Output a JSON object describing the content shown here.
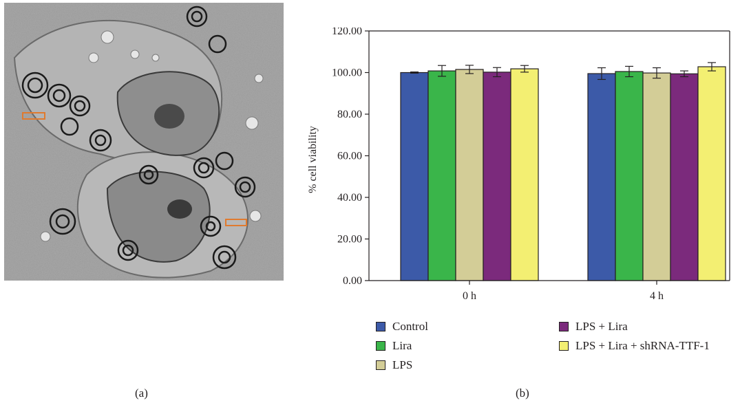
{
  "panels": {
    "left_label": "(a)",
    "right_label": "(b)"
  },
  "micrograph": {
    "description_icon": "tem-micrograph-image",
    "highlight_color": "#e07a2e"
  },
  "chart_data": {
    "type": "bar",
    "title": "",
    "xlabel": "",
    "ylabel": "% cell viability",
    "ylim": [
      0,
      120
    ],
    "yticks": [
      "0.00",
      "20.00",
      "40.00",
      "60.00",
      "80.00",
      "100.00",
      "120.00"
    ],
    "categories": [
      "0 h",
      "4 h"
    ],
    "series": [
      {
        "name": "Control",
        "color": "#3c5aa8",
        "values": [
          100.0,
          99.5
        ],
        "errors": [
          0.3,
          2.8
        ]
      },
      {
        "name": "Lira",
        "color": "#3ab54a",
        "values": [
          100.8,
          100.5
        ],
        "errors": [
          2.6,
          2.5
        ]
      },
      {
        "name": "LPS",
        "color": "#d3cd97",
        "values": [
          101.5,
          99.8
        ],
        "errors": [
          2.0,
          2.5
        ]
      },
      {
        "name": "LPS + Lira",
        "color": "#7b2a7c",
        "values": [
          100.2,
          99.4
        ],
        "errors": [
          2.2,
          1.4
        ]
      },
      {
        "name": "LPS + Lira + shRNA-TTF-1",
        "color": "#f3ef72",
        "values": [
          101.8,
          102.8
        ],
        "errors": [
          1.6,
          2.0
        ]
      }
    ],
    "grid": false,
    "legend_position": "bottom"
  }
}
